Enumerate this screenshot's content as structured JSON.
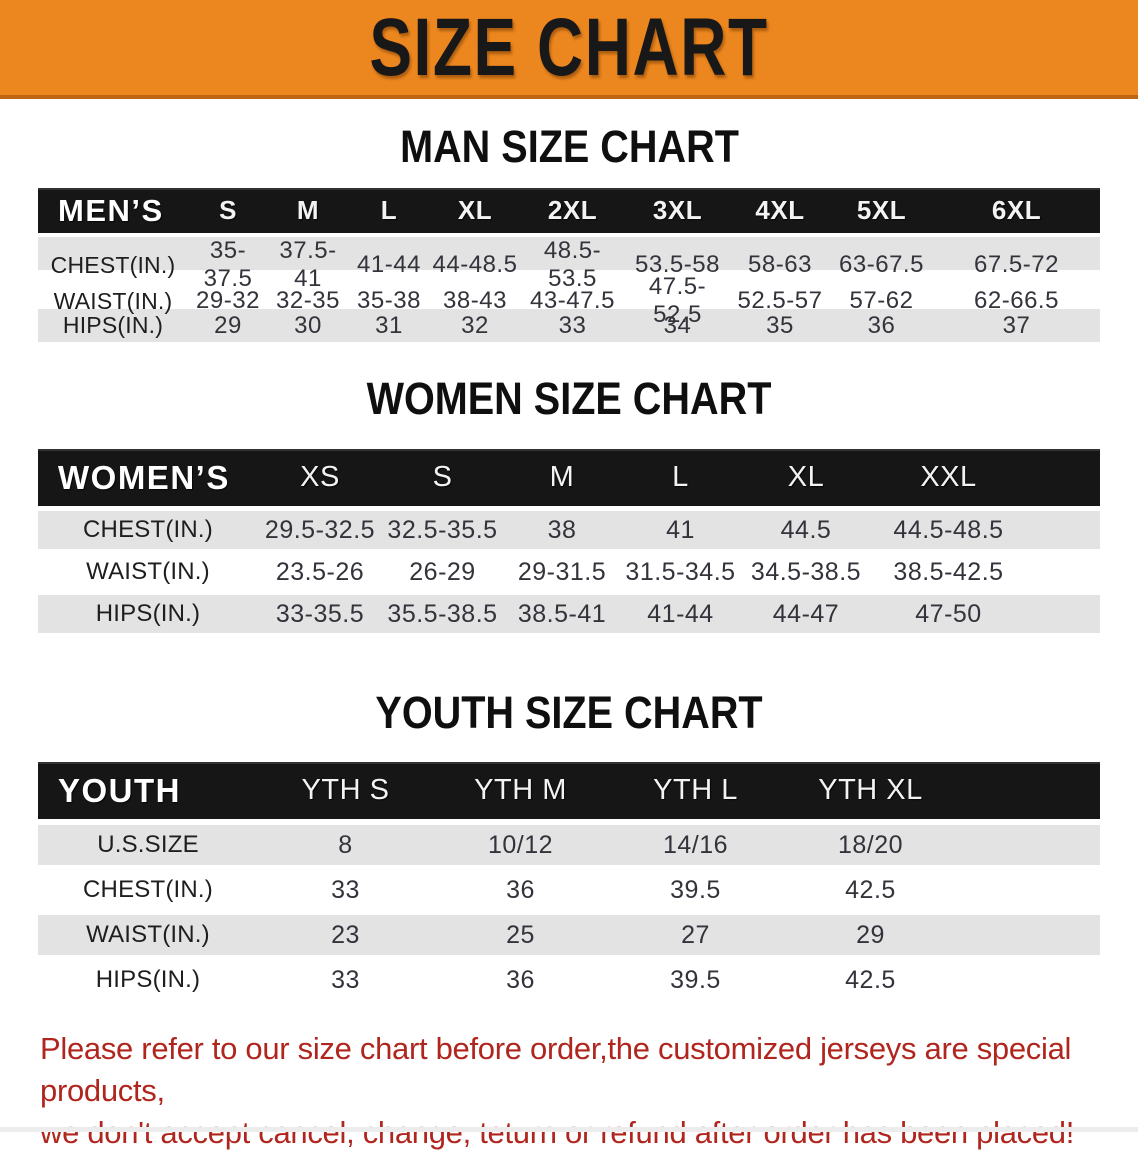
{
  "banner": {
    "title": "SIZE CHART"
  },
  "men": {
    "heading": "MAN SIZE CHART",
    "header": [
      "MEN’S",
      "S",
      "M",
      "L",
      "XL",
      "2XL",
      "3XL",
      "4XL",
      "5XL",
      "6XL"
    ],
    "rows": [
      {
        "label": "CHEST(IN.)",
        "values": [
          "35-37.5",
          "37.5-41",
          "41-44",
          "44-48.5",
          "48.5-53.5",
          "53.5-58",
          "58-63",
          "63-67.5",
          "67.5-72"
        ]
      },
      {
        "label": "WAIST(IN.)",
        "values": [
          "29-32",
          "32-35",
          "35-38",
          "38-43",
          "43-47.5",
          "47.5-52.5",
          "52.5-57",
          "57-62",
          "62-66.5"
        ]
      },
      {
        "label": "HIPS(IN.)",
        "values": [
          "29",
          "30",
          "31",
          "32",
          "33",
          "34",
          "35",
          "36",
          "37"
        ]
      }
    ]
  },
  "women": {
    "heading": "WOMEN SIZE CHART",
    "header": [
      "WOMEN’S",
      "XS",
      "S",
      "M",
      "L",
      "XL",
      "XXL"
    ],
    "rows": [
      {
        "label": "CHEST(IN.)",
        "values": [
          "29.5-32.5",
          "32.5-35.5",
          "38",
          "41",
          "44.5",
          "44.5-48.5"
        ]
      },
      {
        "label": "WAIST(IN.)",
        "values": [
          "23.5-26",
          "26-29",
          "29-31.5",
          "31.5-34.5",
          "34.5-38.5",
          "38.5-42.5"
        ]
      },
      {
        "label": "HIPS(IN.)",
        "values": [
          "33-35.5",
          "35.5-38.5",
          "38.5-41",
          "41-44",
          "44-47",
          "47-50"
        ]
      }
    ]
  },
  "youth": {
    "heading": "YOUTH SIZE CHART",
    "header": [
      "YOUTH",
      "YTH S",
      "YTH M",
      "YTH L",
      "YTH XL"
    ],
    "rows": [
      {
        "label": "U.S.SIZE",
        "values": [
          "8",
          "10/12",
          "14/16",
          "18/20"
        ]
      },
      {
        "label": "CHEST(IN.)",
        "values": [
          "33",
          "36",
          "39.5",
          "42.5"
        ]
      },
      {
        "label": "WAIST(IN.)",
        "values": [
          "23",
          "25",
          "27",
          "29"
        ]
      },
      {
        "label": "HIPS(IN.)",
        "values": [
          "33",
          "36",
          "39.5",
          "42.5"
        ]
      }
    ]
  },
  "disclaimer": {
    "line1": "Please refer to our size chart before order,the customized jerseys are special products,",
    "line2": "we don't accept cancel, change, teturn or refund after order has been placed!"
  },
  "colors": {
    "banner_orange": "#EC861E",
    "banner_border": "#BE6512",
    "table_header_black": "#161616",
    "row_gray": "#E3E3E3",
    "row_white": "#FFFFFF",
    "disclaimer_red": "#B0261E"
  }
}
